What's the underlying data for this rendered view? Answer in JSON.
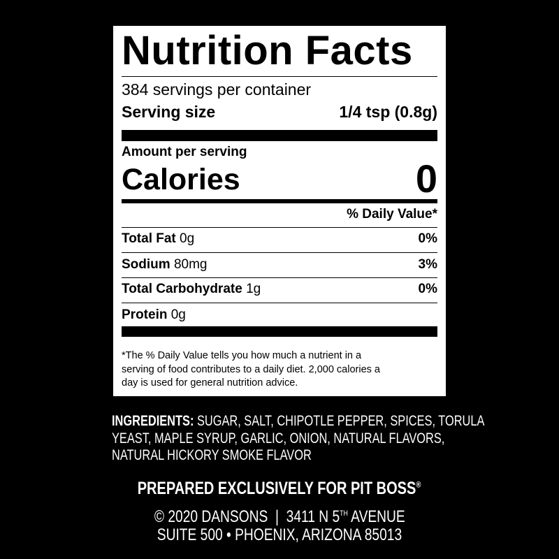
{
  "label": {
    "title": "Nutrition Facts",
    "servings_per_container": "384 servings per container",
    "serving_size_label": "Serving size",
    "serving_size_value": "1/4 tsp (0.8g)",
    "amount_per_serving": "Amount per serving",
    "calories_label": "Calories",
    "calories_value": "0",
    "daily_value_header": "% Daily Value*",
    "nutrients": [
      {
        "name": "Total Fat",
        "amount": "0g",
        "dv": "0%"
      },
      {
        "name": "Sodium",
        "amount": "80mg",
        "dv": "3%"
      },
      {
        "name": "Total Carbohydrate",
        "amount": "1g",
        "dv": "0%"
      },
      {
        "name": "Protein",
        "amount": "0g",
        "dv": ""
      }
    ],
    "footnote": [
      "*The % Daily Value tells you how much a nutrient in a",
      "serving of food contributes to a daily diet. 2,000 calories a",
      "day is used for general nutrition advice."
    ]
  },
  "ingredients": {
    "label": "INGREDIENTS:",
    "lines": [
      " SUGAR, SALT, CHIPOTLE PEPPER, SPICES, TORULA",
      "YEAST, MAPLE SYRUP, GARLIC, ONION, NATURAL FLAVORS,",
      "NATURAL HICKORY SMOKE FLAVOR"
    ]
  },
  "footer": {
    "prepared": "PREPARED EXCLUSIVELY FOR PIT BOSS",
    "registered": "®",
    "address_line1_a": "© 2020 DANSONS  |  3411 N 5",
    "address_line1_sup": "TH",
    "address_line1_b": " AVENUE",
    "address_line2": "SUITE 500 • PHOENIX, ARIZONA 85013"
  }
}
